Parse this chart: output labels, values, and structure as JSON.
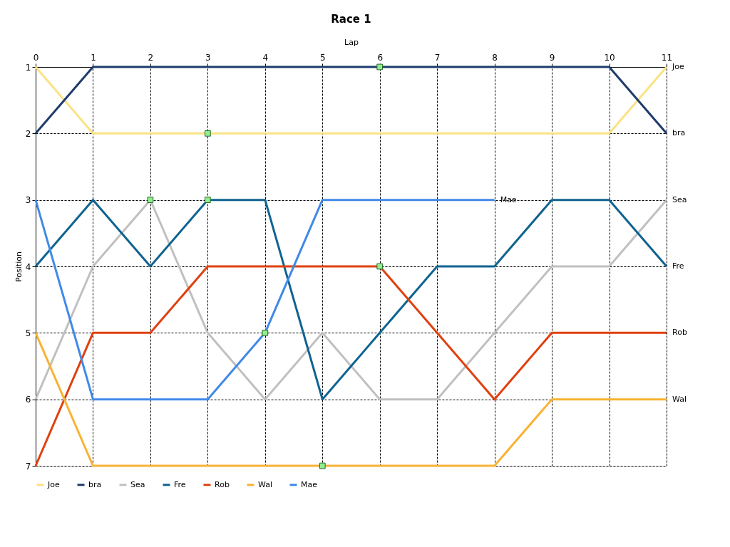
{
  "chart_data": {
    "type": "line",
    "title": "Race 1",
    "xlabel": "Lap",
    "ylabel": "Position",
    "x": [
      0,
      1,
      2,
      3,
      4,
      5,
      6,
      7,
      8,
      9,
      10,
      11
    ],
    "xlim": [
      0,
      11
    ],
    "xticks": [
      0,
      1,
      2,
      3,
      4,
      5,
      6,
      7,
      8,
      9,
      10,
      11
    ],
    "ylim": [
      7,
      1
    ],
    "yticks": [
      1,
      2,
      3,
      4,
      5,
      6,
      7
    ],
    "grid": true,
    "legend": "bottom left",
    "line_style": "solid",
    "series": [
      {
        "name": "Joe",
        "color": "#fbe283",
        "values": [
          1,
          2,
          2,
          2,
          2,
          2,
          2,
          2,
          2,
          2,
          2,
          1
        ]
      },
      {
        "name": "bra",
        "color": "#1f3b6c",
        "values": [
          2,
          1,
          1,
          1,
          1,
          1,
          1,
          1,
          1,
          1,
          1,
          2
        ]
      },
      {
        "name": "Sea",
        "color": "#c0c0c0",
        "values": [
          6,
          4,
          3,
          5,
          6,
          5,
          6,
          6,
          5,
          4,
          4,
          3
        ]
      },
      {
        "name": "Fre",
        "color": "#0f6390",
        "values": [
          4,
          3,
          4,
          3,
          3,
          6,
          5,
          4,
          4,
          3,
          3,
          4
        ]
      },
      {
        "name": "Rob",
        "color": "#e0400f",
        "values": [
          7,
          5,
          5,
          4,
          4,
          4,
          4,
          5,
          6,
          5,
          5,
          5
        ]
      },
      {
        "name": "Wal",
        "color": "#f9b233",
        "values": [
          5,
          7,
          7,
          7,
          7,
          7,
          7,
          7,
          7,
          6,
          6,
          6
        ]
      },
      {
        "name": "Mae",
        "color": "#4189e8",
        "values": [
          3,
          6,
          6,
          6,
          5,
          3,
          3,
          3,
          3,
          null,
          null,
          null
        ]
      },
      {
        "type": "scatter",
        "marker": "square",
        "color": "#90ee90",
        "x": [
          6,
          3,
          2,
          3,
          6,
          4,
          5
        ],
        "values": [
          1,
          2,
          3,
          3,
          4,
          5,
          7
        ]
      }
    ]
  }
}
